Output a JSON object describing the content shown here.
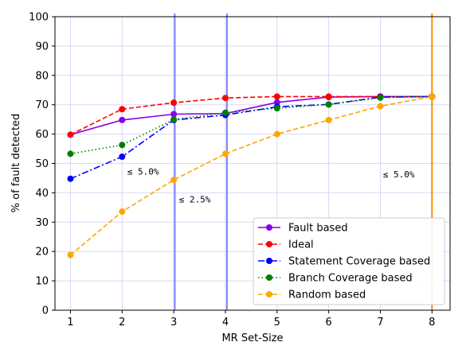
{
  "chart_data": {
    "type": "line",
    "xlabel": "MR Set-Size",
    "ylabel": "% of fault detected",
    "xlim": [
      0.7,
      8.35
    ],
    "ylim": [
      0,
      100
    ],
    "xticks": [
      1,
      2,
      3,
      4,
      5,
      6,
      7,
      8
    ],
    "yticks": [
      0,
      10,
      20,
      30,
      40,
      50,
      60,
      70,
      80,
      90,
      100
    ],
    "grid": true,
    "legend_position": "lower-right",
    "series": [
      {
        "name": "Fault based",
        "color": "#8a00e6",
        "dash": "solid",
        "x": [
          1,
          2,
          3,
          4,
          5,
          6,
          7,
          8
        ],
        "y": [
          59.8,
          64.8,
          66.8,
          67.0,
          70.8,
          72.6,
          72.8,
          72.8
        ]
      },
      {
        "name": "Ideal",
        "color": "#ff0000",
        "dash": "dashed",
        "x": [
          1,
          2,
          3,
          4,
          5,
          6,
          7,
          8
        ],
        "y": [
          59.8,
          68.5,
          70.7,
          72.3,
          72.8,
          72.8,
          72.8,
          72.8
        ]
      },
      {
        "name": "Statement Coverage based",
        "color": "#0000ff",
        "dash": "dashdot",
        "x": [
          1,
          2,
          3,
          4,
          5,
          6,
          7,
          8
        ],
        "y": [
          44.8,
          52.3,
          64.8,
          66.5,
          69.3,
          70.1,
          72.6,
          72.8
        ]
      },
      {
        "name": "Branch Coverage based",
        "color": "#008000",
        "dash": "dotted",
        "x": [
          1,
          2,
          3,
          4,
          5,
          6,
          7,
          8
        ],
        "y": [
          53.3,
          56.3,
          65.0,
          67.3,
          68.8,
          70.1,
          72.4,
          72.8
        ]
      },
      {
        "name": "Random based",
        "color": "#ffa500",
        "dash": "dashed",
        "x": [
          1,
          2,
          3,
          4,
          5,
          6,
          7,
          8
        ],
        "y": [
          18.8,
          33.6,
          44.4,
          53.3,
          60.0,
          64.8,
          69.5,
          72.8
        ]
      }
    ],
    "vlines": [
      {
        "x": 3.02,
        "color": "#8080ff"
      },
      {
        "x": 4.03,
        "color": "#8080ff"
      },
      {
        "x": 8.0,
        "color": "#ff8c00"
      }
    ],
    "annotations": [
      {
        "text": "≤ 5.0%",
        "x": 2.1,
        "y": 46.2
      },
      {
        "text": "≤ 2.5%",
        "x": 3.1,
        "y": 36.7
      },
      {
        "text": "≤ 5.0%",
        "x": 7.05,
        "y": 45.3
      }
    ]
  }
}
